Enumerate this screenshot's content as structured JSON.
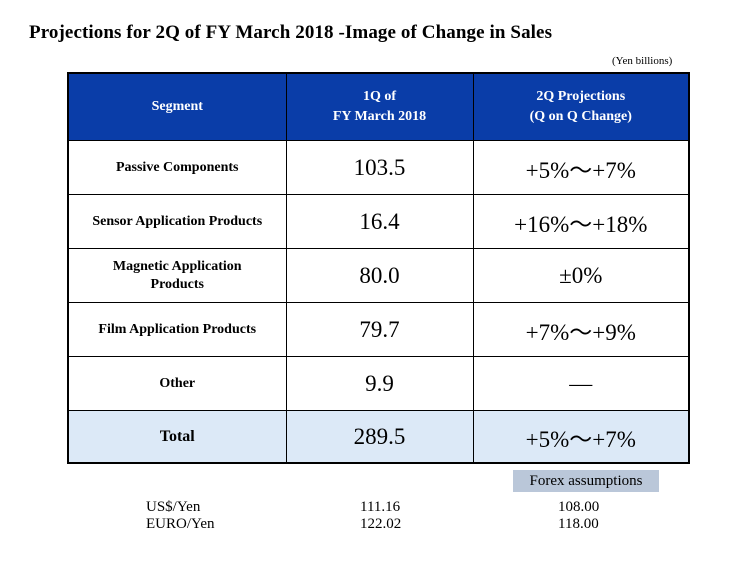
{
  "title": "Projections for 2Q of FY March 2018 -Image of Change in Sales",
  "unit": "(Yen billions)",
  "table": {
    "headers": {
      "segment": "Segment",
      "q1_line1": "1Q of",
      "q1_line2": "FY March 2018",
      "q2_line1": "2Q Projections",
      "q2_line2": "(Q on Q Change)"
    },
    "rows": [
      {
        "segment": "Passive Components",
        "q1": "103.5",
        "q2": "+5%～+7%"
      },
      {
        "segment": "Sensor Application  Products",
        "q1": "16.4",
        "q2": "+16%～+18%"
      },
      {
        "segment_line1": "Magnetic Application",
        "segment_line2": "Products",
        "q1": "80.0",
        "q2": "±0%"
      },
      {
        "segment": "Film Application  Products",
        "q1": "79.7",
        "q2": "+7%～+9%"
      },
      {
        "segment": "Other",
        "q1": "9.9",
        "q2": "—"
      }
    ],
    "total": {
      "segment": "Total",
      "q1": "289.5",
      "q2": "+5%～+7%"
    }
  },
  "forex": {
    "badge": "Forex assumptions",
    "rows": [
      {
        "label": "US$/Yen",
        "v1": "111.16",
        "v2": "108.00"
      },
      {
        "label": "EURO/Yen",
        "v1": "122.02",
        "v2": "118.00"
      }
    ]
  },
  "colors": {
    "header_bg": "#0a3da8",
    "total_bg": "#dce9f7",
    "forex_badge_bg": "#bac7d9"
  }
}
